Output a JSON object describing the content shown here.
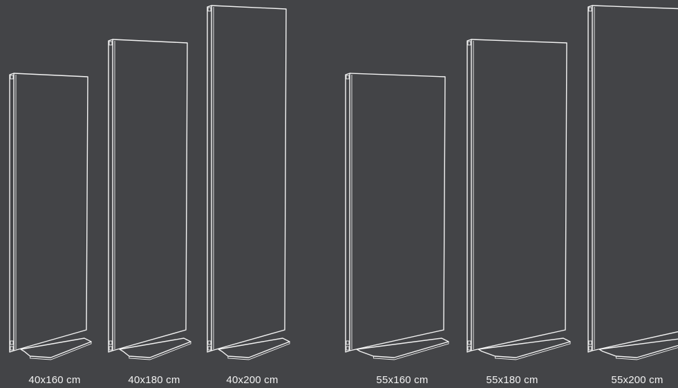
{
  "colors": {
    "background": "#434447",
    "line": "#f4f4f4",
    "text": "#f2f2f2"
  },
  "panels": [
    {
      "label": "40x160 cm"
    },
    {
      "label": "40x180 cm"
    },
    {
      "label": "40x200 cm"
    },
    {
      "label": "55x160 cm"
    },
    {
      "label": "55x180 cm"
    },
    {
      "label": "55x200 cm"
    }
  ]
}
